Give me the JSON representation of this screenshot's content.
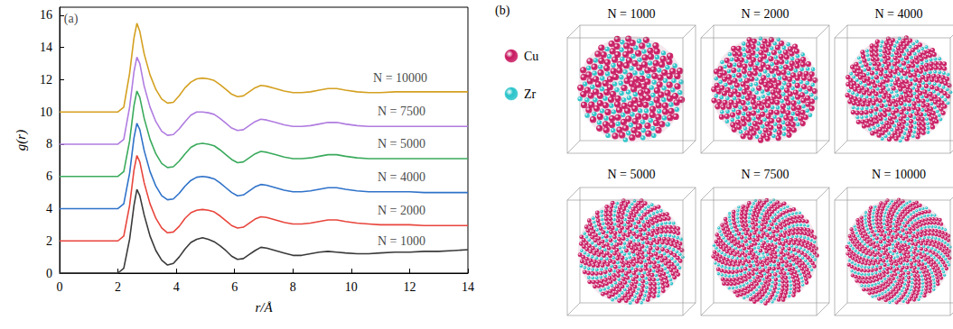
{
  "chart_data": {
    "type": "line",
    "x_label": "r/Å",
    "y_label": "g(r)",
    "xlim": [
      0,
      14
    ],
    "xticks": [
      0,
      2,
      4,
      6,
      8,
      10,
      12,
      14
    ],
    "ylim": [
      0,
      16.5
    ],
    "yticks": [
      0,
      2,
      4,
      6,
      8,
      10,
      12,
      14,
      16
    ],
    "grid": false,
    "x": [
      0,
      2.0,
      2.2,
      2.4,
      2.55,
      2.65,
      2.75,
      2.9,
      3.1,
      3.3,
      3.5,
      3.7,
      3.9,
      4.1,
      4.3,
      4.5,
      4.7,
      4.9,
      5.1,
      5.3,
      5.5,
      5.7,
      5.9,
      6.1,
      6.3,
      6.5,
      6.7,
      6.9,
      7.1,
      7.4,
      7.7,
      8.0,
      8.3,
      8.6,
      8.9,
      9.2,
      9.5,
      9.8,
      10.2,
      10.6,
      11.0,
      11.5,
      12.0,
      12.5,
      13.0,
      13.5,
      14.0
    ],
    "series": [
      {
        "name": "N = 1000",
        "color": "#3a3a3a",
        "values": [
          0,
          0,
          0.3,
          2.1,
          4.2,
          5.2,
          4.8,
          3.6,
          2.3,
          1.4,
          0.8,
          0.5,
          0.6,
          1.0,
          1.5,
          1.9,
          2.1,
          2.2,
          2.1,
          1.95,
          1.7,
          1.4,
          1.05,
          0.85,
          0.9,
          1.15,
          1.4,
          1.6,
          1.55,
          1.4,
          1.25,
          1.1,
          1.1,
          1.2,
          1.3,
          1.35,
          1.3,
          1.25,
          1.2,
          1.2,
          1.25,
          1.3,
          1.3,
          1.35,
          1.35,
          1.4,
          1.45
        ]
      },
      {
        "name": "N = 2000",
        "color": "#e8453c",
        "values": [
          2,
          2,
          2.3,
          4.2,
          6.4,
          7.3,
          6.9,
          5.6,
          4.3,
          3.4,
          2.8,
          2.5,
          2.55,
          2.9,
          3.4,
          3.75,
          3.9,
          3.95,
          3.9,
          3.8,
          3.55,
          3.25,
          2.95,
          2.8,
          2.85,
          3.1,
          3.35,
          3.5,
          3.45,
          3.3,
          3.15,
          3.05,
          3.05,
          3.1,
          3.2,
          3.3,
          3.3,
          3.2,
          3.1,
          3.05,
          3.0,
          3.0,
          3.0,
          2.95,
          2.95,
          2.95,
          2.95
        ]
      },
      {
        "name": "N = 4000",
        "color": "#2f72c9",
        "values": [
          4,
          4,
          4.3,
          6.2,
          8.4,
          9.3,
          8.9,
          7.6,
          6.3,
          5.4,
          4.8,
          4.55,
          4.6,
          4.95,
          5.4,
          5.75,
          5.95,
          6.0,
          5.95,
          5.85,
          5.6,
          5.3,
          5.0,
          4.8,
          4.85,
          5.1,
          5.35,
          5.5,
          5.45,
          5.3,
          5.15,
          5.05,
          5.05,
          5.1,
          5.2,
          5.3,
          5.3,
          5.2,
          5.1,
          5.05,
          5.05,
          5.05,
          5.05,
          5.0,
          5.0,
          5.0,
          5.0
        ]
      },
      {
        "name": "N = 5000",
        "color": "#3aaa5c",
        "values": [
          6,
          6,
          6.3,
          8.2,
          10.4,
          11.3,
          10.9,
          9.6,
          8.3,
          7.4,
          6.8,
          6.55,
          6.6,
          6.95,
          7.4,
          7.8,
          8.0,
          8.05,
          8.0,
          7.9,
          7.65,
          7.35,
          7.05,
          6.85,
          6.9,
          7.15,
          7.4,
          7.55,
          7.5,
          7.35,
          7.2,
          7.1,
          7.1,
          7.15,
          7.25,
          7.35,
          7.35,
          7.25,
          7.15,
          7.1,
          7.1,
          7.1,
          7.1,
          7.1,
          7.1,
          7.1,
          7.1
        ]
      },
      {
        "name": "N = 7500",
        "color": "#b07ce0",
        "values": [
          8,
          8,
          8.3,
          10.3,
          12.5,
          13.4,
          13.0,
          11.6,
          10.3,
          9.4,
          8.8,
          8.55,
          8.6,
          8.95,
          9.4,
          9.8,
          10.0,
          10.0,
          9.95,
          9.85,
          9.6,
          9.3,
          9.0,
          8.85,
          8.9,
          9.15,
          9.4,
          9.55,
          9.5,
          9.35,
          9.2,
          9.1,
          9.1,
          9.15,
          9.25,
          9.35,
          9.35,
          9.25,
          9.15,
          9.1,
          9.1,
          9.1,
          9.1,
          9.1,
          9.1,
          9.1,
          9.1
        ]
      },
      {
        "name": "N = 10000",
        "color": "#d4a020",
        "values": [
          10,
          10,
          10.3,
          12.4,
          14.6,
          15.5,
          15.0,
          13.6,
          12.3,
          11.4,
          10.8,
          10.55,
          10.6,
          11.0,
          11.5,
          11.85,
          12.05,
          12.1,
          12.05,
          11.95,
          11.7,
          11.4,
          11.1,
          10.95,
          11.0,
          11.25,
          11.5,
          11.65,
          11.6,
          11.45,
          11.3,
          11.2,
          11.2,
          11.25,
          11.35,
          11.45,
          11.45,
          11.35,
          11.25,
          11.2,
          11.2,
          11.25,
          11.25,
          11.25,
          11.25,
          11.25,
          11.25
        ]
      }
    ],
    "annotations": [
      {
        "text": "(a)",
        "x": 0.15,
        "y": 15.8
      },
      {
        "text": "N = 10000",
        "x": 10.75,
        "y": 12.1
      },
      {
        "text": "N = 7500",
        "x": 10.9,
        "y": 10.05
      },
      {
        "text": "N = 5000",
        "x": 10.9,
        "y": 8.05
      },
      {
        "text": "N = 4000",
        "x": 10.9,
        "y": 5.95
      },
      {
        "text": "N = 2000",
        "x": 10.9,
        "y": 3.9
      },
      {
        "text": "N = 1000",
        "x": 10.9,
        "y": 2.0
      }
    ]
  },
  "panel_b": {
    "label": "(b)",
    "species": [
      {
        "name": "Cu",
        "color": "#c8175f"
      },
      {
        "name": "Zr",
        "color": "#27c3c9"
      }
    ],
    "snapshots": [
      "N = 1000",
      "N = 2000",
      "N = 4000",
      "N = 5000",
      "N = 7500",
      "N = 10000"
    ]
  }
}
